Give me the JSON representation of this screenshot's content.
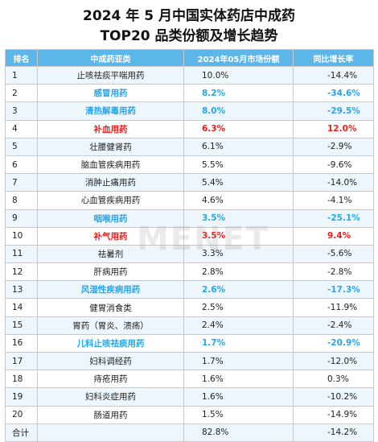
{
  "title_line1": "2024 年 5 月中国实体药店中成药",
  "title_line2": "TOP20 品类份额及增长趋势",
  "columns": [
    "排名",
    "中成药亚类",
    "2024年05月市场份额",
    "同比增长率"
  ],
  "rows": [
    {
      "rank": "1",
      "category": "止咳祛痰平喘用药",
      "share": "10.0%",
      "growth": "-14.4%",
      "highlight": "none"
    },
    {
      "rank": "2",
      "category": "感冒用药",
      "share": "8.2%",
      "growth": "-34.6%",
      "highlight": "blue"
    },
    {
      "rank": "3",
      "category": "清热解毒用药",
      "share": "8.0%",
      "growth": "-29.5%",
      "highlight": "blue"
    },
    {
      "rank": "4",
      "category": "补血用药",
      "share": "6.3%",
      "growth": "12.0%",
      "highlight": "red"
    },
    {
      "rank": "5",
      "category": "壮腰健肾药",
      "share": "6.1%",
      "growth": "-2.9%",
      "highlight": "none"
    },
    {
      "rank": "6",
      "category": "脑血管疾病用药",
      "share": "5.5%",
      "growth": "-9.6%",
      "highlight": "none"
    },
    {
      "rank": "7",
      "category": "消肿止痛用药",
      "share": "5.4%",
      "growth": "-14.0%",
      "highlight": "none"
    },
    {
      "rank": "8",
      "category": "心血管疾病用药",
      "share": "4.6%",
      "growth": "-4.1%",
      "highlight": "none"
    },
    {
      "rank": "9",
      "category": "咽喉用药",
      "share": "3.5%",
      "growth": "-25.1%",
      "highlight": "blue"
    },
    {
      "rank": "10",
      "category": "补气用药",
      "share": "3.5%",
      "growth": "9.4%",
      "highlight": "red"
    },
    {
      "rank": "11",
      "category": "祛暑剂",
      "share": "3.3%",
      "growth": "-5.6%",
      "highlight": "none"
    },
    {
      "rank": "12",
      "category": "肝病用药",
      "share": "2.8%",
      "growth": "-2.8%",
      "highlight": "none"
    },
    {
      "rank": "13",
      "category": "风湿性疾病用药",
      "share": "2.6%",
      "growth": "-17.3%",
      "highlight": "blue"
    },
    {
      "rank": "14",
      "category": "健胃消食类",
      "share": "2.5%",
      "growth": "-11.9%",
      "highlight": "none"
    },
    {
      "rank": "15",
      "category": "胃药（胃炎、溃疡）",
      "share": "2.4%",
      "growth": "-2.4%",
      "highlight": "none"
    },
    {
      "rank": "16",
      "category": "儿科止咳祛痰用药",
      "share": "1.7%",
      "growth": "-20.9%",
      "highlight": "blue"
    },
    {
      "rank": "17",
      "category": "妇科调经药",
      "share": "1.7%",
      "growth": "-12.0%",
      "highlight": "none"
    },
    {
      "rank": "18",
      "category": "痔疮用药",
      "share": "1.6%",
      "growth": "0.3%",
      "highlight": "none"
    },
    {
      "rank": "19",
      "category": "妇科炎症用药",
      "share": "1.6%",
      "growth": "-10.2%",
      "highlight": "none"
    },
    {
      "rank": "20",
      "category": "肠道用药",
      "share": "1.5%",
      "growth": "-14.9%",
      "highlight": "none"
    },
    {
      "rank": "合计",
      "category": "",
      "share": "82.8%",
      "growth": "-14.2%",
      "highlight": "none"
    }
  ],
  "watermark": "MENET",
  "colors": {
    "header_bg": "#5db6ea",
    "blue_text": "#27a6e8",
    "red_text": "#ee1c1c",
    "zebra": "#edf6fc"
  }
}
